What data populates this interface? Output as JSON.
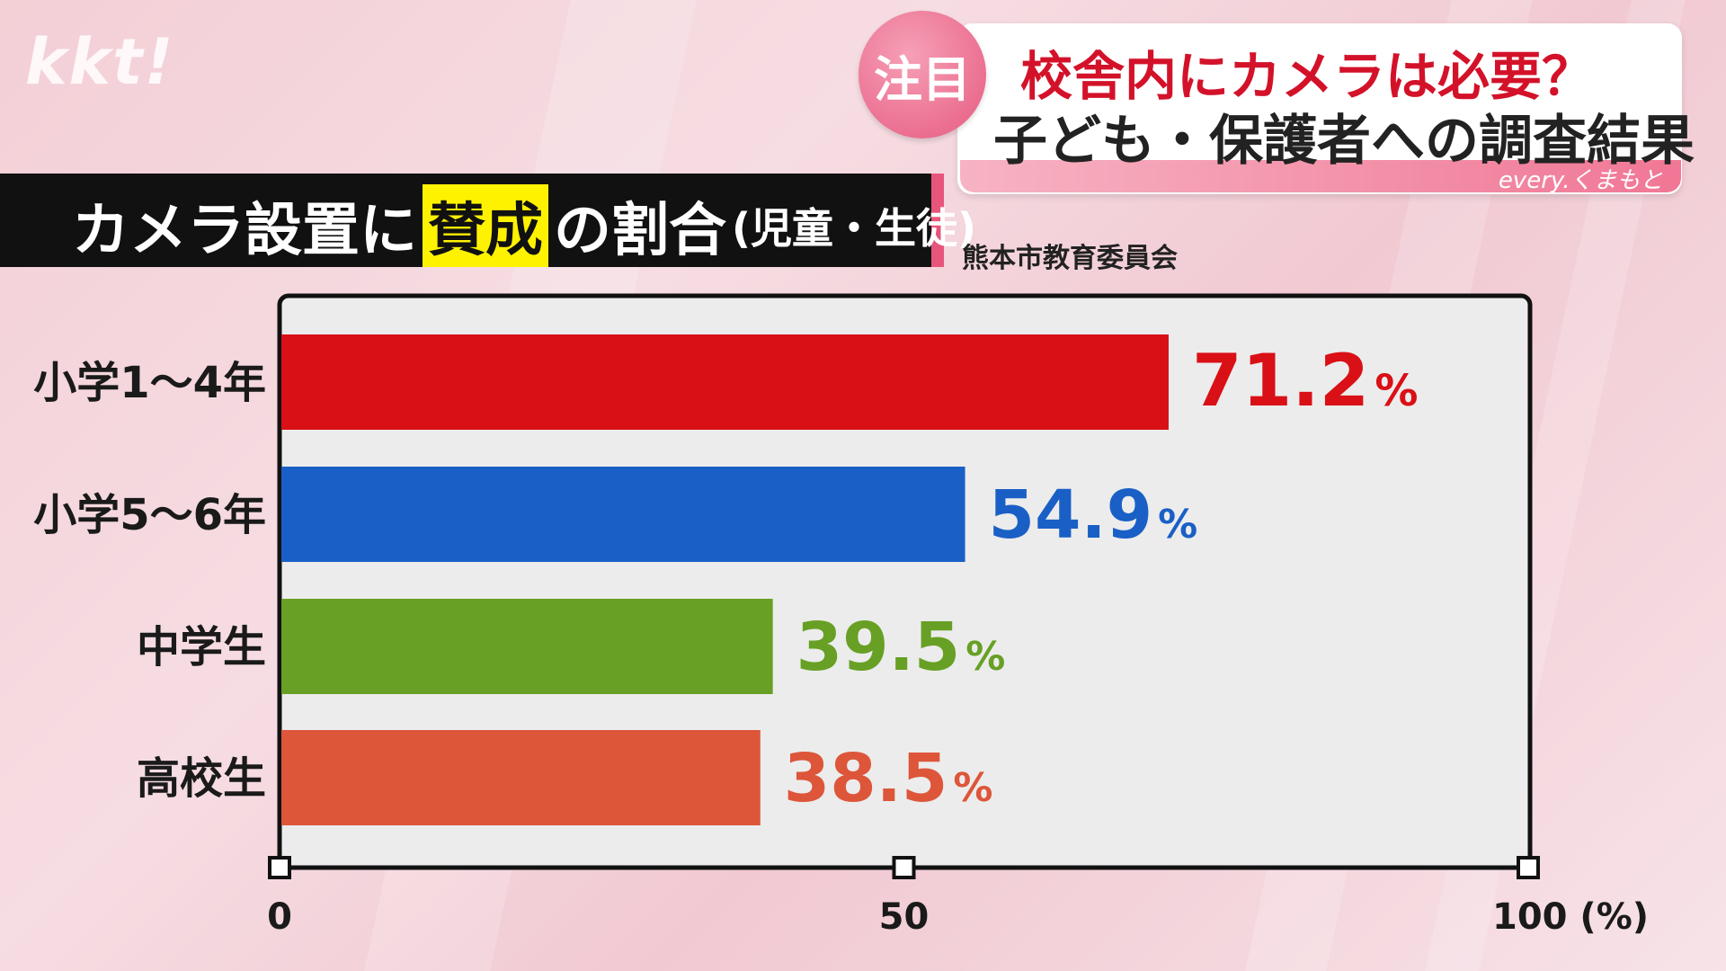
{
  "logo": "kkt!",
  "topic": {
    "badge": "注目",
    "headline_line1": "校舎内にカメラは必要？",
    "headline_line2": "子ども・保護者への調査結果",
    "program_logo": "every.くまもと"
  },
  "title": {
    "prefix": "カメラ設置に",
    "highlight": "賛成",
    "suffix": "の割合",
    "sub": "(児童・生徒)"
  },
  "source": "熊本市教育委員会",
  "colors": {
    "bar_1": "#d91016",
    "bar_2": "#1a5fc6",
    "bar_3": "#67a024",
    "bar_4": "#dd563a",
    "title_highlight": "#fff200",
    "accent_pink": "#eb6f90"
  },
  "chart_data": {
    "type": "bar",
    "orientation": "horizontal",
    "categories": [
      "小学1～4年",
      "小学5～6年",
      "中学生",
      "高校生"
    ],
    "values": [
      71.2,
      54.9,
      39.5,
      38.5
    ],
    "value_labels": [
      "71.2",
      "54.9",
      "39.5",
      "38.5"
    ],
    "value_unit": "%",
    "xlim": [
      0,
      100
    ],
    "xticks": [
      "0",
      "50",
      "100 (%)"
    ],
    "title": "カメラ設置に賛成の割合(児童・生徒)",
    "xlabel": "",
    "ylabel": ""
  }
}
